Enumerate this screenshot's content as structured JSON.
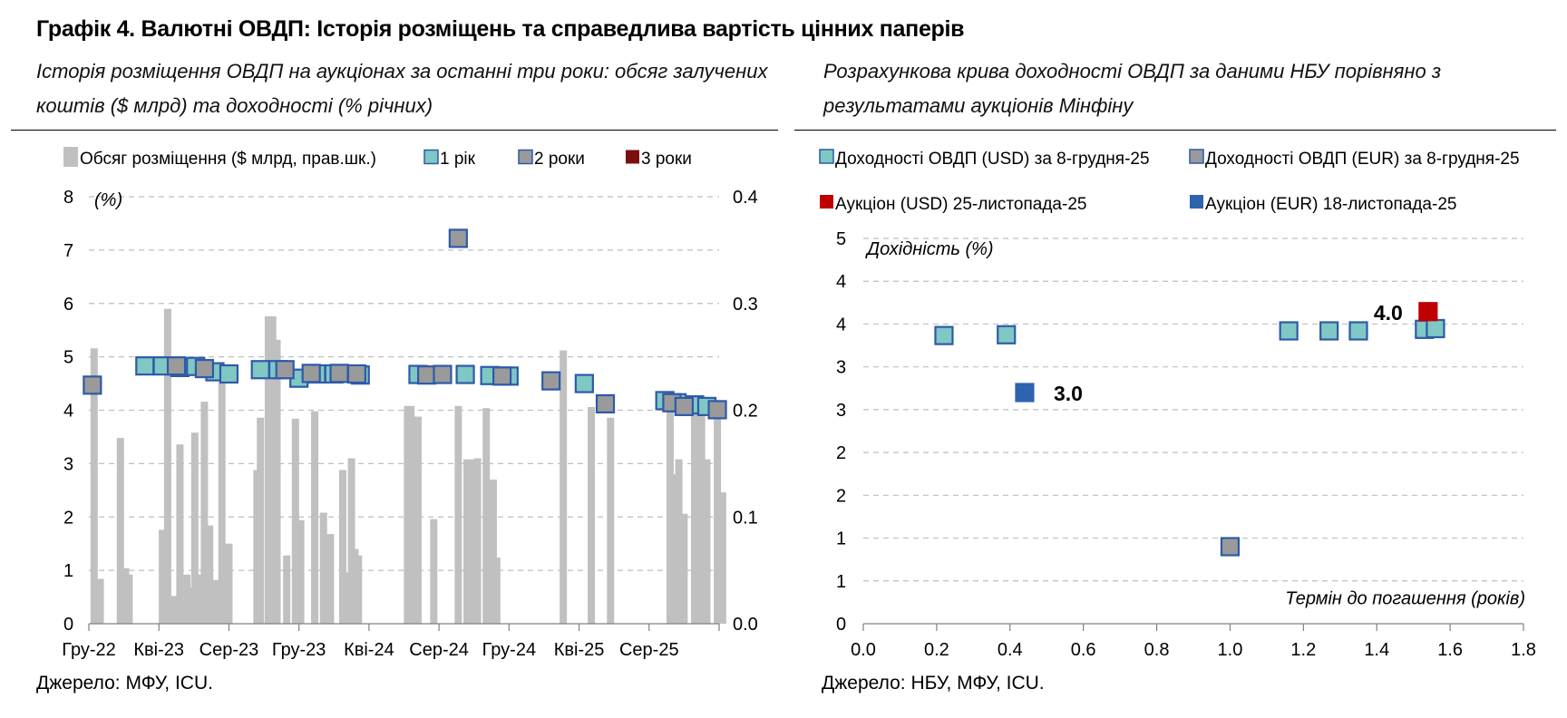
{
  "title": "Графік 4. Валютні ОВДП: Історія розміщень та справедлива вартість цінних паперів",
  "left": {
    "subtitle_line1": "Історія розміщення ОВДП на аукціонах за останні три роки: обсяг залучених",
    "subtitle_line2": "коштів ($ млрд) та доходності (% річних)",
    "source": "Джерело: МФУ, ICU."
  },
  "right": {
    "subtitle_line1": "Розрахункова крива доходності ОВДП за даними НБУ порівняно з",
    "subtitle_line2": "результатами аукціонів Мінфіну",
    "source": "Джерело: НБУ, МФУ, ICU."
  },
  "colors": {
    "bar": "#c0c0c0",
    "one_year_fill": "#7fc8c4",
    "two_year_fill": "#9a9a9a",
    "three_year_fill": "#7a0f0f",
    "marker_border": "#2e5aa8",
    "usd_auction": "#c00000",
    "eur_auction": "#2e63b0",
    "grid": "#bfbfbf",
    "axis": "#808080"
  },
  "chart_data": [
    {
      "type": "bar+scatter",
      "legend": [
        {
          "label": "Обсяг розміщення ($ млрд, прав.шк.)",
          "style": "bar"
        },
        {
          "label": "1 рік",
          "style": "one_year"
        },
        {
          "label": "2 роки",
          "style": "two_year"
        },
        {
          "label": "3 роки",
          "style": "three_year"
        }
      ],
      "ylabel_left": "(%)",
      "ylim_left": [
        0,
        8
      ],
      "yticks_left": [
        "0",
        "1",
        "2",
        "3",
        "4",
        "5",
        "6",
        "7",
        "8"
      ],
      "ylim_right": [
        0,
        0.4
      ],
      "yticks_right": [
        "0.0",
        "0.1",
        "0.2",
        "0.3",
        "0.4"
      ],
      "xlim": [
        0,
        36
      ],
      "xticks": [
        {
          "x": 0,
          "label": "Гру-22"
        },
        {
          "x": 4,
          "label": "Кві-23"
        },
        {
          "x": 8,
          "label": "Сер-23"
        },
        {
          "x": 12,
          "label": "Гру-23"
        },
        {
          "x": 16,
          "label": "Кві-24"
        },
        {
          "x": 20,
          "label": "Сер-24"
        },
        {
          "x": 24,
          "label": "Гру-24"
        },
        {
          "x": 28,
          "label": "Кві-25"
        },
        {
          "x": 32,
          "label": "Сер-25"
        }
      ],
      "bars": [
        [
          0.3,
          0.258
        ],
        [
          0.65,
          0.042
        ],
        [
          1.8,
          0.174
        ],
        [
          2.1,
          0.052
        ],
        [
          2.3,
          0.046
        ],
        [
          4.2,
          0.088
        ],
        [
          4.5,
          0.295
        ],
        [
          4.9,
          0.026
        ],
        [
          5.2,
          0.168
        ],
        [
          5.6,
          0.046
        ],
        [
          5.9,
          0.034
        ],
        [
          6.05,
          0.179
        ],
        [
          6.3,
          0.046
        ],
        [
          6.6,
          0.208
        ],
        [
          6.9,
          0.092
        ],
        [
          7.3,
          0.041
        ],
        [
          7.6,
          0.226
        ],
        [
          8.0,
          0.075
        ],
        [
          9.6,
          0.144
        ],
        [
          9.8,
          0.193
        ],
        [
          10.25,
          0.288
        ],
        [
          10.5,
          0.288
        ],
        [
          10.75,
          0.266
        ],
        [
          11.3,
          0.064
        ],
        [
          11.8,
          0.192
        ],
        [
          12.1,
          0.097
        ],
        [
          12.9,
          0.199
        ],
        [
          13.4,
          0.104
        ],
        [
          13.8,
          0.084
        ],
        [
          14.5,
          0.144
        ],
        [
          14.7,
          0.048
        ],
        [
          15.0,
          0.155
        ],
        [
          15.2,
          0.07
        ],
        [
          15.4,
          0.064
        ],
        [
          18.2,
          0.204
        ],
        [
          18.4,
          0.204
        ],
        [
          18.8,
          0.194
        ],
        [
          19.7,
          0.098
        ],
        [
          21.1,
          0.204
        ],
        [
          21.6,
          0.154
        ],
        [
          21.9,
          0.154
        ],
        [
          22.2,
          0.155
        ],
        [
          22.7,
          0.202
        ],
        [
          23.1,
          0.135
        ],
        [
          23.3,
          0.062
        ],
        [
          27.1,
          0.256
        ],
        [
          28.7,
          0.203
        ],
        [
          29.8,
          0.193
        ],
        [
          33.2,
          0.202
        ],
        [
          33.4,
          0.14
        ],
        [
          33.7,
          0.154
        ],
        [
          34.0,
          0.103
        ],
        [
          34.6,
          0.202
        ],
        [
          35.0,
          0.202
        ],
        [
          35.3,
          0.154
        ],
        [
          35.9,
          0.202
        ],
        [
          36.2,
          0.123
        ]
      ],
      "one_year": [
        [
          3.2,
          4.83
        ],
        [
          4.2,
          4.83
        ],
        [
          5.2,
          4.8
        ],
        [
          6.1,
          4.82
        ],
        [
          7.2,
          4.72
        ],
        [
          8.0,
          4.68
        ],
        [
          9.8,
          4.76
        ],
        [
          10.8,
          4.76
        ],
        [
          12.0,
          4.6
        ],
        [
          13.0,
          4.68
        ],
        [
          14.0,
          4.68
        ],
        [
          15.5,
          4.66
        ],
        [
          18.8,
          4.67
        ],
        [
          21.5,
          4.67
        ],
        [
          22.9,
          4.65
        ],
        [
          24.0,
          4.64
        ],
        [
          28.3,
          4.5
        ],
        [
          32.9,
          4.18
        ],
        [
          33.6,
          4.14
        ],
        [
          34.6,
          4.1
        ],
        [
          35.3,
          4.07
        ]
      ],
      "two_year": [
        [
          0.2,
          4.47
        ],
        [
          5.0,
          4.83
        ],
        [
          6.6,
          4.78
        ],
        [
          11.2,
          4.76
        ],
        [
          12.7,
          4.69
        ],
        [
          14.3,
          4.69
        ],
        [
          15.3,
          4.68
        ],
        [
          19.3,
          4.66
        ],
        [
          20.2,
          4.67
        ],
        [
          21.1,
          7.22
        ],
        [
          23.6,
          4.64
        ],
        [
          26.4,
          4.55
        ],
        [
          29.5,
          4.12
        ],
        [
          33.3,
          4.14
        ],
        [
          34.0,
          4.07
        ],
        [
          35.9,
          4.01
        ]
      ],
      "three_year": []
    },
    {
      "type": "scatter",
      "legend": [
        {
          "label": "Доходності ОВДП (USD) за 8-грудня-25",
          "style": "usd_nbu"
        },
        {
          "label": "Доходності ОВДП (EUR) за 8-грудня-25",
          "style": "eur_nbu"
        },
        {
          "label": "Аукціон (USD) 25-листопада-25",
          "style": "usd_auction"
        },
        {
          "label": "Аукціон (EUR) 18-листопада-25",
          "style": "eur_auction"
        }
      ],
      "ylabel": "Дохідність (%)",
      "xlabel": "Термін до погашення (років)",
      "ylim": [
        0,
        5
      ],
      "xlim": [
        0,
        1.8
      ],
      "yticks": [
        "0",
        "1",
        "1",
        "2",
        "2",
        "3",
        "3",
        "4",
        "4",
        "5"
      ],
      "xticks": [
        "0.0",
        "0.2",
        "0.4",
        "0.6",
        "0.8",
        "1.0",
        "1.2",
        "1.4",
        "1.6",
        "1.8"
      ],
      "usd_nbu": [
        [
          0.22,
          3.74
        ],
        [
          0.39,
          3.75
        ],
        [
          1.16,
          3.8
        ],
        [
          1.27,
          3.8
        ],
        [
          1.35,
          3.8
        ],
        [
          1.53,
          3.82
        ],
        [
          1.56,
          3.83
        ]
      ],
      "eur_nbu": [
        [
          1.0,
          1.0
        ]
      ],
      "usd_auction": [
        [
          1.54,
          4.05
        ]
      ],
      "eur_auction": [
        [
          0.44,
          3.0
        ]
      ],
      "annotations": [
        {
          "series": "usd_auction",
          "text": "4.0"
        },
        {
          "series": "eur_auction",
          "text": "3.0"
        }
      ]
    }
  ]
}
